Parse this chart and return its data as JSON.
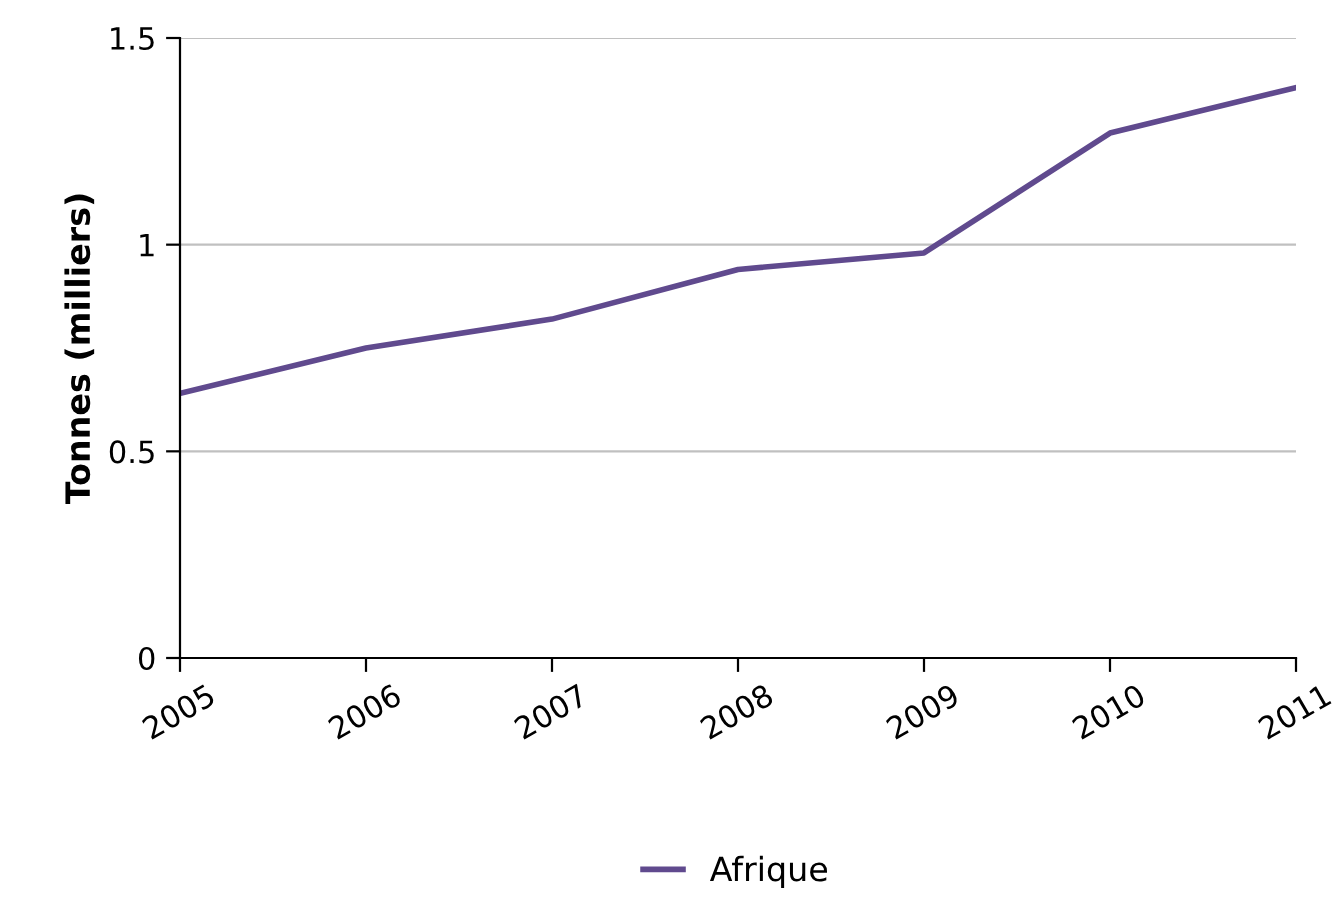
{
  "chart_data": {
    "type": "line",
    "ylabel": "Tonnes (milliers)",
    "categories": [
      "2005",
      "2006",
      "2007",
      "2008",
      "2009",
      "2010",
      "2011"
    ],
    "series": [
      {
        "name": "Afrique",
        "color": "#604a8e",
        "values": [
          0.64,
          0.75,
          0.82,
          0.94,
          0.98,
          1.27,
          1.38
        ]
      }
    ],
    "ylim": [
      0,
      1.5
    ],
    "yticks": [
      0,
      0.5,
      1,
      1.5
    ],
    "grid": "y",
    "legend": "bottom",
    "marker": "none",
    "line_style": "solid"
  }
}
